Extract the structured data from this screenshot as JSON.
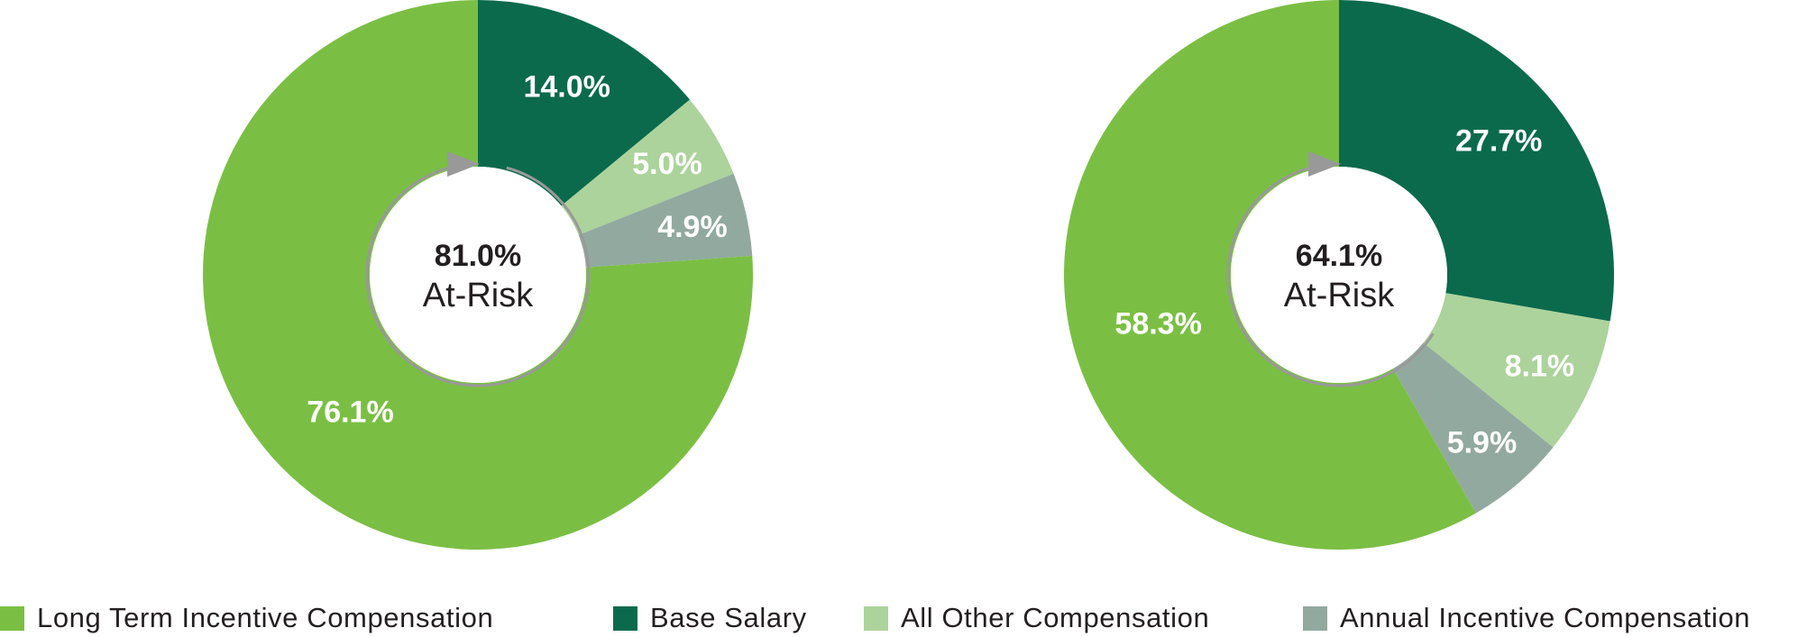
{
  "chart_data": [
    {
      "type": "pie",
      "categories": [
        "Base Salary",
        "All Other Compensation",
        "Annual Incentive Compensation",
        "Long Term Incentive Compensation"
      ],
      "values": [
        14.0,
        5.0,
        4.9,
        76.1
      ],
      "labels": [
        "14.0%",
        "5.0%",
        "4.9%",
        "76.1%"
      ],
      "center": {
        "value": "81.0%",
        "caption": "At-Risk"
      }
    },
    {
      "type": "pie",
      "categories": [
        "Base Salary",
        "All Other Compensation",
        "Annual Incentive Compensation",
        "Long Term Incentive Compensation"
      ],
      "values": [
        27.7,
        8.1,
        5.9,
        58.3
      ],
      "labels": [
        "27.7%",
        "8.1%",
        "5.9%",
        "58.3%"
      ],
      "center": {
        "value": "64.1%",
        "caption": "At-Risk"
      }
    }
  ],
  "legend": {
    "items": [
      {
        "label": "Long Term Incentive Compensation",
        "color": "#7abf43"
      },
      {
        "label": "Base Salary",
        "color": "#0b6a4c"
      },
      {
        "label": "All Other Compensation",
        "color": "#acd39b"
      },
      {
        "label": "Annual Incentive Compensation",
        "color": "#92a9a0"
      }
    ]
  },
  "colors": {
    "Base Salary": "#0b6a4c",
    "All Other Compensation": "#acd39b",
    "Annual Incentive Compensation": "#92a9a0",
    "Long Term Incentive Compensation": "#7abf43",
    "arrow": "#999999"
  },
  "icons": {
    "center_arrow": "circular-arrow-icon"
  }
}
